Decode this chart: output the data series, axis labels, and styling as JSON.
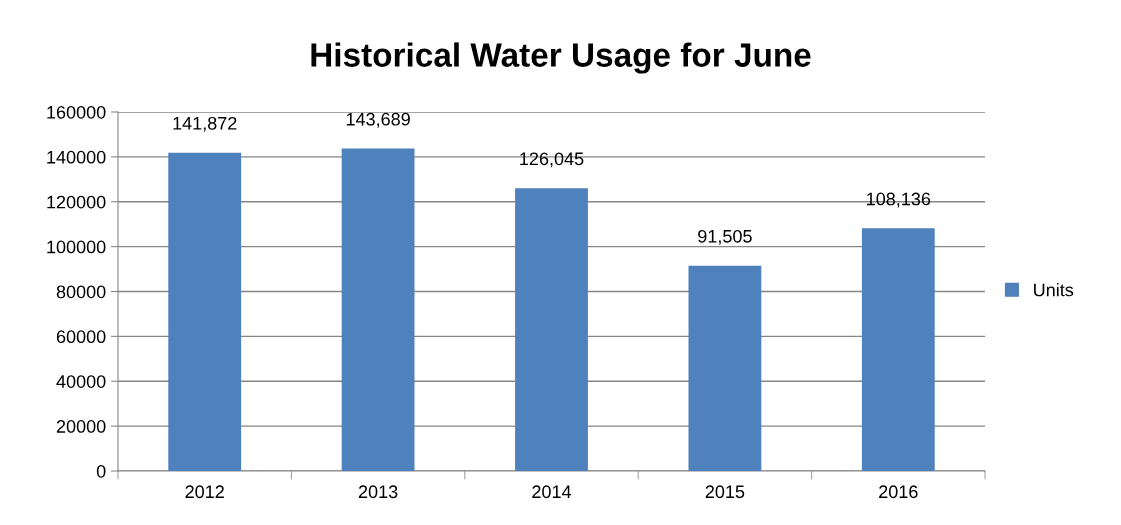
{
  "chart_data": {
    "type": "bar",
    "title": "Historical Water Usage for June",
    "categories": [
      "2012",
      "2013",
      "2014",
      "2015",
      "2016"
    ],
    "series": [
      {
        "name": "Units",
        "color": "#4f81bd",
        "values": [
          141872,
          143689,
          126045,
          91505,
          108136
        ],
        "value_labels": [
          "141,872",
          "143,689",
          "126,045",
          "91,505",
          "108,136"
        ]
      }
    ],
    "ylim": [
      0,
      160000
    ],
    "yticks": [
      0,
      20000,
      40000,
      60000,
      80000,
      100000,
      120000,
      140000,
      160000
    ],
    "grid": "y",
    "legend": "right"
  }
}
